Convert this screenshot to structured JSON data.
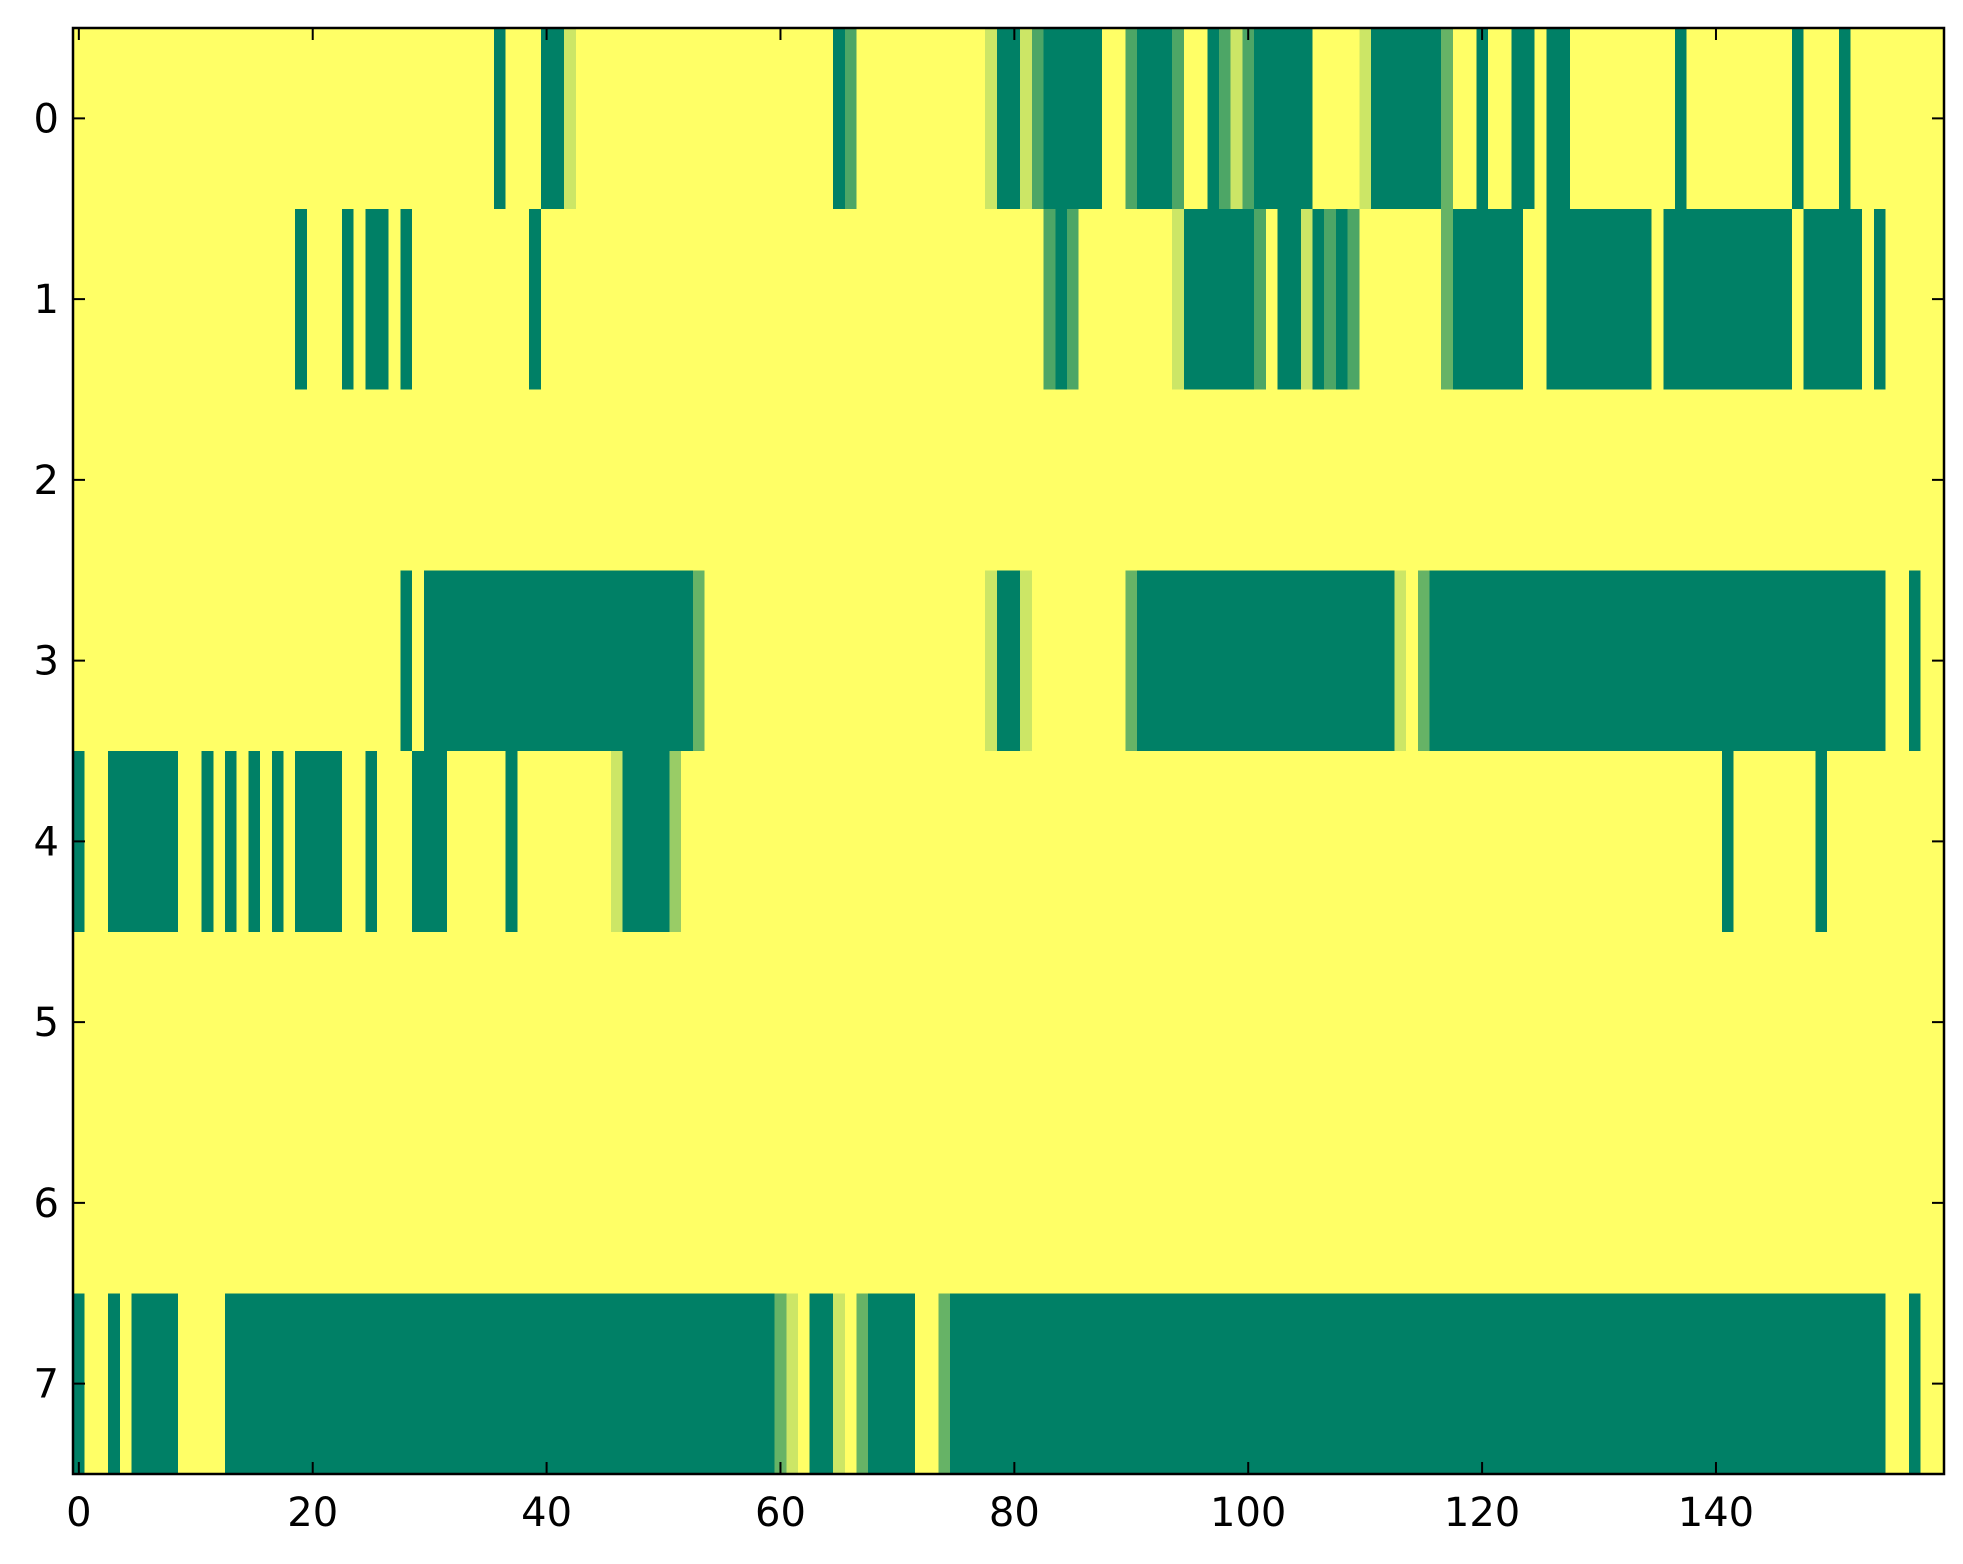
{
  "chart_data": {
    "type": "heatmap",
    "cmap": [
      "#008066",
      "#ffff66"
    ],
    "vlim": [
      0,
      1
    ],
    "xlim": [
      -0.5,
      159.5
    ],
    "ylim": [
      7.5,
      -0.5
    ],
    "xticks": [
      0,
      20,
      40,
      60,
      80,
      100,
      120,
      140
    ],
    "yticks": [
      0,
      1,
      2,
      3,
      4,
      5,
      6,
      7
    ],
    "z": [
      [
        1,
        1,
        1,
        1,
        1,
        1,
        1,
        1,
        1,
        1,
        1,
        1,
        1,
        1,
        1,
        1,
        1,
        1,
        1,
        1,
        1,
        1,
        1,
        1,
        1,
        1,
        1,
        1,
        1,
        1,
        1,
        1,
        1,
        1,
        1,
        1,
        0,
        1,
        1,
        1,
        0,
        0,
        0.8,
        1,
        1,
        1,
        1,
        1,
        1,
        1,
        1,
        1,
        1,
        1,
        1,
        1,
        1,
        1,
        1,
        1,
        1,
        1,
        1,
        1,
        1,
        0,
        0.3,
        1,
        1,
        1,
        1,
        1,
        1,
        1,
        1,
        1,
        1,
        1,
        0.8,
        0,
        0,
        0.8,
        0.3,
        0,
        0,
        0,
        0,
        0,
        1,
        1,
        0.3,
        0,
        0,
        0,
        0.3,
        1,
        1,
        0,
        0.3,
        0.8,
        0.3,
        0,
        0,
        0,
        0,
        0,
        1,
        1,
        1,
        1,
        0.8,
        0,
        0,
        0,
        0,
        0,
        0,
        0.4,
        1,
        1,
        0,
        1,
        1,
        0,
        0,
        1,
        0,
        0,
        1,
        1,
        1,
        1,
        1,
        1,
        1,
        1,
        1,
        0,
        1,
        1,
        1,
        1,
        1,
        1,
        1,
        1,
        1,
        0,
        1,
        1,
        1,
        0,
        1,
        1,
        1,
        1,
        1,
        1,
        1,
        1
      ],
      [
        1,
        1,
        1,
        1,
        1,
        1,
        1,
        1,
        1,
        1,
        1,
        1,
        1,
        1,
        1,
        1,
        1,
        1,
        1,
        0,
        1,
        1,
        1,
        0,
        1,
        0,
        0,
        1,
        0,
        1,
        1,
        1,
        1,
        1,
        1,
        1,
        1,
        1,
        1,
        0,
        1,
        1,
        1,
        1,
        1,
        1,
        1,
        1,
        1,
        1,
        1,
        1,
        1,
        1,
        1,
        1,
        1,
        1,
        1,
        1,
        1,
        1,
        1,
        1,
        1,
        1,
        1,
        1,
        1,
        1,
        1,
        1,
        1,
        1,
        1,
        1,
        1,
        1,
        1,
        1,
        1,
        1,
        1,
        0.3,
        0,
        0.3,
        1,
        1,
        1,
        1,
        1,
        1,
        1,
        1,
        0.8,
        0,
        0,
        0,
        0,
        0,
        0,
        0.3,
        1,
        0,
        0,
        0.8,
        0,
        0.3,
        0,
        0.3,
        1,
        1,
        1,
        1,
        1,
        1,
        1,
        0.4,
        0,
        0,
        0,
        0,
        0,
        0,
        1,
        1,
        0,
        0,
        0,
        0,
        0,
        0,
        0,
        0,
        0,
        1,
        0,
        0,
        0,
        0,
        0,
        0,
        0,
        0,
        0,
        0,
        0,
        1,
        0,
        0,
        0,
        0,
        0,
        1,
        0,
        1,
        1,
        1,
        1,
        1
      ],
      [
        1,
        1,
        1,
        1,
        1,
        1,
        1,
        1,
        1,
        1,
        1,
        1,
        1,
        1,
        1,
        1,
        1,
        1,
        1,
        1,
        1,
        1,
        1,
        1,
        1,
        1,
        1,
        1,
        1,
        1,
        1,
        1,
        1,
        1,
        1,
        1,
        1,
        1,
        1,
        1,
        1,
        1,
        1,
        1,
        1,
        1,
        1,
        1,
        1,
        1,
        1,
        1,
        1,
        1,
        1,
        1,
        1,
        1,
        1,
        1,
        1,
        1,
        1,
        1,
        1,
        1,
        1,
        1,
        1,
        1,
        1,
        1,
        1,
        1,
        1,
        1,
        1,
        1,
        1,
        1,
        1,
        1,
        1,
        1,
        1,
        1,
        1,
        1,
        1,
        1,
        1,
        1,
        1,
        1,
        1,
        1,
        1,
        1,
        1,
        1,
        1,
        1,
        1,
        1,
        1,
        1,
        1,
        1,
        1,
        1,
        1,
        1,
        1,
        1,
        1,
        1,
        1,
        1,
        1,
        1,
        1,
        1,
        1,
        1,
        1,
        1,
        1,
        1,
        1,
        1,
        1,
        1,
        1,
        1,
        1,
        1,
        1,
        1,
        1,
        1,
        1,
        1,
        1,
        1,
        1,
        1,
        1,
        1,
        1,
        1,
        1,
        1,
        1,
        1,
        1,
        1,
        1,
        1,
        1,
        1
      ],
      [
        1,
        1,
        1,
        1,
        1,
        1,
        1,
        1,
        1,
        1,
        1,
        1,
        1,
        1,
        1,
        1,
        1,
        1,
        1,
        1,
        1,
        1,
        1,
        1,
        1,
        1,
        1,
        1,
        0,
        1,
        0,
        0,
        0,
        0,
        0,
        0,
        0,
        0,
        0,
        0,
        0,
        0,
        0,
        0,
        0,
        0,
        0,
        0,
        0,
        0,
        0,
        0,
        0,
        0.4,
        1,
        1,
        1,
        1,
        1,
        1,
        1,
        1,
        1,
        1,
        1,
        1,
        1,
        1,
        1,
        1,
        1,
        1,
        1,
        1,
        1,
        1,
        1,
        1,
        0.8,
        0,
        0,
        0.8,
        1,
        1,
        1,
        1,
        1,
        1,
        1,
        1,
        0.4,
        0,
        0,
        0,
        0,
        0,
        0,
        0,
        0,
        0,
        0,
        0,
        0,
        0,
        0,
        0,
        0,
        0,
        0,
        0,
        0,
        0,
        0,
        0.8,
        1,
        0.4,
        0,
        0,
        0,
        0,
        0,
        0,
        0,
        0,
        0,
        0,
        0,
        0,
        0,
        0,
        0,
        0,
        0,
        0,
        0,
        0,
        0,
        0,
        0,
        0,
        0,
        0,
        0,
        0,
        0,
        0,
        0,
        0,
        0,
        0,
        0,
        0,
        0,
        0,
        0,
        1,
        1,
        0,
        1,
        1
      ],
      [
        0,
        1,
        1,
        0,
        0,
        0,
        0,
        0,
        0,
        1,
        1,
        0,
        1,
        0,
        1,
        0,
        1,
        0,
        1,
        0,
        0,
        0,
        0,
        1,
        1,
        0,
        1,
        1,
        1,
        0,
        0,
        0,
        1,
        1,
        1,
        1,
        1,
        0,
        1,
        1,
        1,
        1,
        1,
        1,
        1,
        1,
        0.8,
        0,
        0,
        0,
        0,
        0.6,
        1,
        1,
        1,
        1,
        1,
        1,
        1,
        1,
        1,
        1,
        1,
        1,
        1,
        1,
        1,
        1,
        1,
        1,
        1,
        1,
        1,
        1,
        1,
        1,
        1,
        1,
        1,
        1,
        1,
        1,
        1,
        1,
        1,
        1,
        1,
        1,
        1,
        1,
        1,
        1,
        1,
        1,
        1,
        1,
        1,
        1,
        1,
        1,
        1,
        1,
        1,
        1,
        1,
        1,
        1,
        1,
        1,
        1,
        1,
        1,
        1,
        1,
        1,
        1,
        1,
        1,
        1,
        1,
        1,
        1,
        1,
        1,
        1,
        1,
        1,
        1,
        1,
        1,
        1,
        1,
        1,
        1,
        1,
        1,
        1,
        1,
        1,
        1,
        1,
        0,
        1,
        1,
        1,
        1,
        1,
        1,
        1,
        0,
        1,
        1,
        1,
        1,
        1,
        1,
        1,
        1,
        1,
        1
      ],
      [
        1,
        1,
        1,
        1,
        1,
        1,
        1,
        1,
        1,
        1,
        1,
        1,
        1,
        1,
        1,
        1,
        1,
        1,
        1,
        1,
        1,
        1,
        1,
        1,
        1,
        1,
        1,
        1,
        1,
        1,
        1,
        1,
        1,
        1,
        1,
        1,
        1,
        1,
        1,
        1,
        1,
        1,
        1,
        1,
        1,
        1,
        1,
        1,
        1,
        1,
        1,
        1,
        1,
        1,
        1,
        1,
        1,
        1,
        1,
        1,
        1,
        1,
        1,
        1,
        1,
        1,
        1,
        1,
        1,
        1,
        1,
        1,
        1,
        1,
        1,
        1,
        1,
        1,
        1,
        1,
        1,
        1,
        1,
        1,
        1,
        1,
        1,
        1,
        1,
        1,
        1,
        1,
        1,
        1,
        1,
        1,
        1,
        1,
        1,
        1,
        1,
        1,
        1,
        1,
        1,
        1,
        1,
        1,
        1,
        1,
        1,
        1,
        1,
        1,
        1,
        1,
        1,
        1,
        1,
        1,
        1,
        1,
        1,
        1,
        1,
        1,
        1,
        1,
        1,
        1,
        1,
        1,
        1,
        1,
        1,
        1,
        1,
        1,
        1,
        1,
        1,
        1,
        1,
        1,
        1,
        1,
        1,
        1,
        1,
        1,
        1,
        1,
        1,
        1,
        1,
        1,
        1,
        1,
        1,
        1
      ],
      [
        1,
        1,
        1,
        1,
        1,
        1,
        1,
        1,
        1,
        1,
        1,
        1,
        1,
        1,
        1,
        1,
        1,
        1,
        1,
        1,
        1,
        1,
        1,
        1,
        1,
        1,
        1,
        1,
        1,
        1,
        1,
        1,
        1,
        1,
        1,
        1,
        1,
        1,
        1,
        1,
        1,
        1,
        1,
        1,
        1,
        1,
        1,
        1,
        1,
        1,
        1,
        1,
        1,
        1,
        1,
        1,
        1,
        1,
        1,
        1,
        1,
        1,
        1,
        1,
        1,
        1,
        1,
        1,
        1,
        1,
        1,
        1,
        1,
        1,
        1,
        1,
        1,
        1,
        1,
        1,
        1,
        1,
        1,
        1,
        1,
        1,
        1,
        1,
        1,
        1,
        1,
        1,
        1,
        1,
        1,
        1,
        1,
        1,
        1,
        1,
        1,
        1,
        1,
        1,
        1,
        1,
        1,
        1,
        1,
        1,
        1,
        1,
        1,
        1,
        1,
        1,
        1,
        1,
        1,
        1,
        1,
        1,
        1,
        1,
        1,
        1,
        1,
        1,
        1,
        1,
        1,
        1,
        1,
        1,
        1,
        1,
        1,
        1,
        1,
        1,
        1,
        1,
        1,
        1,
        1,
        1,
        1,
        1,
        1,
        1,
        1,
        1,
        1,
        1,
        1,
        1,
        1,
        1,
        1,
        1
      ],
      [
        0,
        1,
        1,
        0,
        1,
        0,
        0,
        0,
        0,
        1,
        1,
        1,
        1,
        0,
        0,
        0,
        0,
        0,
        0,
        0,
        0,
        0,
        0,
        0,
        0,
        0,
        0,
        0,
        0,
        0,
        0,
        0,
        0,
        0,
        0,
        0,
        0,
        0,
        0,
        0,
        0,
        0,
        0,
        0,
        0,
        0,
        0,
        0,
        0,
        0,
        0,
        0,
        0,
        0,
        0,
        0,
        0,
        0,
        0,
        0,
        0.4,
        0.8,
        1,
        0,
        0,
        0.8,
        1,
        0.4,
        0,
        0,
        0,
        0,
        1,
        1,
        0.4,
        0,
        0,
        0,
        0,
        0,
        0,
        0,
        0,
        0,
        0,
        0,
        0,
        0,
        0,
        0,
        0,
        0,
        0,
        0,
        0,
        0,
        0,
        0,
        0,
        0,
        0,
        0,
        0,
        0,
        0,
        0,
        0,
        0,
        0,
        0,
        0,
        0,
        0,
        0,
        0,
        0,
        0,
        0,
        0,
        0,
        0,
        0,
        0,
        0,
        0,
        0,
        0,
        0,
        0,
        0,
        0,
        0,
        0,
        0,
        0,
        0,
        0,
        0,
        0,
        0,
        0,
        0,
        0,
        0,
        0,
        0,
        0,
        0,
        0,
        0,
        0,
        0,
        0,
        0,
        0,
        1,
        1,
        0,
        1,
        1
      ]
    ]
  }
}
